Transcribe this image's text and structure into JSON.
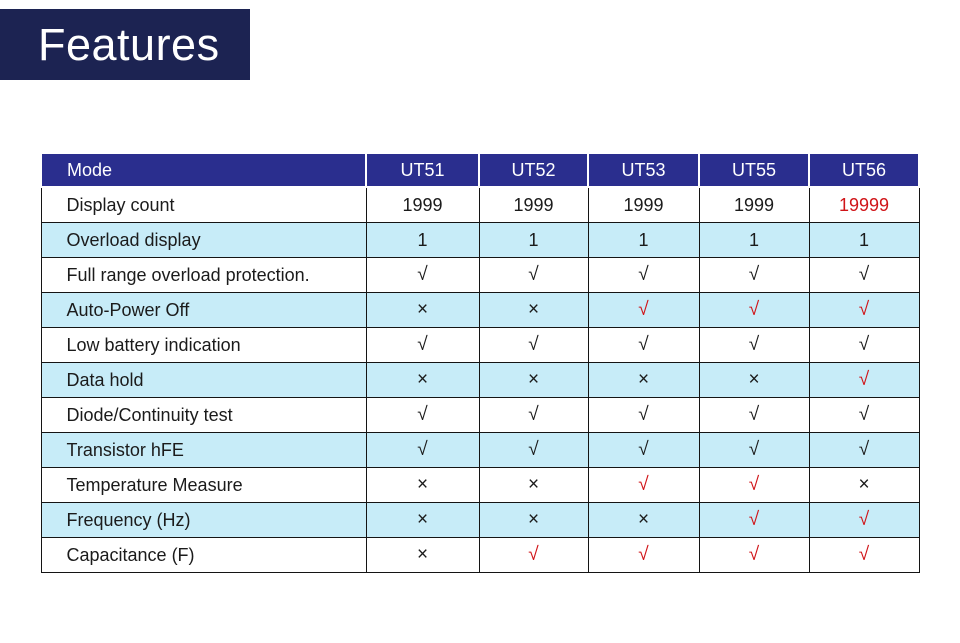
{
  "title": "Features",
  "colors": {
    "title_bg": "#1c2352",
    "header_bg": "#2a2e8e",
    "row_alt_bg": "#c7ecf8",
    "red": "#d01418",
    "border": "#141414",
    "cell_text": "#1b1b1b"
  },
  "table": {
    "columns": [
      "Mode",
      "UT51",
      "UT52",
      "UT53",
      "UT55",
      "UT56"
    ],
    "rows": [
      {
        "label": "Display count",
        "cells": [
          {
            "t": "1999"
          },
          {
            "t": "1999"
          },
          {
            "t": "1999"
          },
          {
            "t": "1999"
          },
          {
            "t": "19999",
            "red": true
          }
        ]
      },
      {
        "label": "Overload display",
        "cells": [
          {
            "t": "1"
          },
          {
            "t": "1"
          },
          {
            "t": "1"
          },
          {
            "t": "1"
          },
          {
            "t": "1"
          }
        ]
      },
      {
        "label": "Full range overload protection.",
        "cells": [
          {
            "t": "√"
          },
          {
            "t": "√"
          },
          {
            "t": "√"
          },
          {
            "t": "√"
          },
          {
            "t": "√"
          }
        ]
      },
      {
        "label": "Auto-Power Off",
        "cells": [
          {
            "t": "×"
          },
          {
            "t": "×"
          },
          {
            "t": "√",
            "red": true
          },
          {
            "t": "√",
            "red": true
          },
          {
            "t": "√",
            "red": true
          }
        ]
      },
      {
        "label": "Low battery indication",
        "cells": [
          {
            "t": "√"
          },
          {
            "t": "√"
          },
          {
            "t": "√"
          },
          {
            "t": "√"
          },
          {
            "t": "√"
          }
        ]
      },
      {
        "label": "Data hold",
        "cells": [
          {
            "t": "×"
          },
          {
            "t": "×"
          },
          {
            "t": "×"
          },
          {
            "t": "×"
          },
          {
            "t": "√",
            "red": true
          }
        ]
      },
      {
        "label": "Diode/Continuity test",
        "cells": [
          {
            "t": "√"
          },
          {
            "t": "√"
          },
          {
            "t": "√"
          },
          {
            "t": "√"
          },
          {
            "t": "√"
          }
        ]
      },
      {
        "label": "Transistor hFE",
        "cells": [
          {
            "t": "√"
          },
          {
            "t": "√"
          },
          {
            "t": "√"
          },
          {
            "t": "√"
          },
          {
            "t": "√"
          }
        ]
      },
      {
        "label": "Temperature Measure",
        "cells": [
          {
            "t": "×"
          },
          {
            "t": "×"
          },
          {
            "t": "√",
            "red": true
          },
          {
            "t": "√",
            "red": true
          },
          {
            "t": "×"
          }
        ]
      },
      {
        "label": "Frequency (Hz)",
        "cells": [
          {
            "t": "×"
          },
          {
            "t": "×"
          },
          {
            "t": "×"
          },
          {
            "t": "√",
            "red": true
          },
          {
            "t": "√",
            "red": true
          }
        ]
      },
      {
        "label": "Capacitance (F)",
        "cells": [
          {
            "t": "×"
          },
          {
            "t": "√",
            "red": true
          },
          {
            "t": "√",
            "red": true
          },
          {
            "t": "√",
            "red": true
          },
          {
            "t": "√",
            "red": true
          }
        ]
      }
    ]
  }
}
